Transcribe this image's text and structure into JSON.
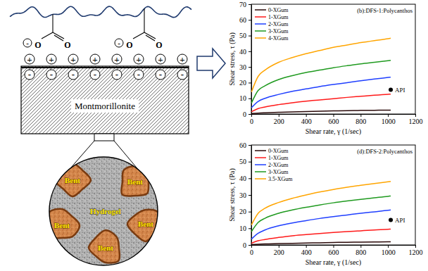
{
  "diagram": {
    "carboxylate_groups": [
      {
        "atoms": [
          "O",
          "O"
        ],
        "charge": "-"
      },
      {
        "atoms": [
          "O",
          "O"
        ],
        "charge": "-"
      }
    ],
    "cation_charges": [
      "+",
      "+",
      "+",
      "+",
      "+",
      "+",
      "+",
      "+"
    ],
    "surface_charges": [
      "-",
      "-",
      "-",
      "-",
      "-",
      "-",
      "-",
      "-"
    ],
    "plate_label": "Montmorillonite",
    "particle_labels": [
      "Bent",
      "Bent",
      "Bent",
      "Bent",
      "Bent"
    ],
    "matrix_label": "Hydrogel"
  },
  "chart_data": [
    {
      "type": "line",
      "title": "(b):DFS-1:Polycanthos",
      "x_label": "Shear rate, γ (1/sec)",
      "y_label": "Shear stress, τ (Pa)",
      "x": [
        1,
        50,
        100,
        200,
        300,
        400,
        500,
        600,
        700,
        800,
        900,
        1000,
        1020
      ],
      "series": [
        {
          "name": "0-XGum",
          "color": "#2b0a0a",
          "line_style": "solid",
          "values": [
            0.3,
            0.6,
            0.8,
            1.1,
            1.4,
            1.6,
            1.8,
            2.0,
            2.1,
            2.3,
            2.4,
            2.5,
            2.5
          ]
        },
        {
          "name": "1-XGum",
          "color": "#ff1a1a",
          "line_style": "solid",
          "values": [
            1.5,
            3.5,
            4.5,
            6,
            7.2,
            8.2,
            9,
            9.8,
            10.6,
            11.3,
            12,
            12.6,
            12.7
          ]
        },
        {
          "name": "2-XGum",
          "color": "#1f3fff",
          "line_style": "solid",
          "values": [
            4,
            8,
            10,
            12.5,
            14.5,
            16,
            17.5,
            18.8,
            20,
            21.2,
            22.3,
            23.3,
            23.5
          ]
        },
        {
          "name": "3-XGum",
          "color": "#1f9a1f",
          "line_style": "solid",
          "values": [
            7,
            15,
            18,
            22,
            24.5,
            26.5,
            28,
            29.5,
            30.8,
            32,
            33,
            34,
            34.2
          ]
        },
        {
          "name": "4-XGum",
          "color": "#ffa500",
          "line_style": "solid",
          "values": [
            14,
            24,
            28,
            33,
            36,
            38.5,
            40.5,
            42.5,
            44,
            45.5,
            46.8,
            48,
            48.3
          ]
        },
        {
          "name": "API",
          "type": "scatter",
          "marker": "circle",
          "color": "#000000",
          "values": [
            null,
            null,
            null,
            null,
            null,
            null,
            null,
            null,
            null,
            null,
            null,
            null,
            15.5
          ]
        }
      ],
      "xlim": [
        0,
        1200
      ],
      "xticks": [
        0,
        200,
        400,
        600,
        800,
        1000,
        1200
      ],
      "ylim": [
        0,
        70
      ],
      "yticks": [
        0,
        10,
        20,
        30,
        40,
        50,
        60,
        70
      ],
      "legend": "upper left",
      "grid": false
    },
    {
      "type": "line",
      "title": "(d):DFS-2:Polycanthos",
      "x_label": "Shear rate, γ (1/sec)",
      "y_label": "Shear stress, τ (Pa)",
      "x": [
        1,
        50,
        100,
        200,
        300,
        400,
        500,
        600,
        700,
        800,
        900,
        1000,
        1020
      ],
      "series": [
        {
          "name": "0-XGum",
          "color": "#2b0a0a",
          "line_style": "solid",
          "values": [
            0.2,
            0.4,
            0.6,
            0.8,
            1.0,
            1.2,
            1.3,
            1.5,
            1.6,
            1.7,
            1.8,
            1.9,
            1.9
          ]
        },
        {
          "name": "1-XGum",
          "color": "#ff1a1a",
          "line_style": "solid",
          "values": [
            1,
            2.5,
            3.3,
            4.5,
            5.5,
            6.2,
            6.9,
            7.5,
            8.0,
            8.5,
            9.0,
            9.4,
            9.5
          ]
        },
        {
          "name": "2-XGum",
          "color": "#1f3fff",
          "line_style": "solid",
          "values": [
            3.5,
            7,
            9,
            11.5,
            13.2,
            14.6,
            15.9,
            17,
            18,
            19,
            19.9,
            20.8,
            21
          ]
        },
        {
          "name": "3-XGum",
          "color": "#1f9a1f",
          "line_style": "solid",
          "values": [
            8,
            13.5,
            16,
            19,
            21,
            22.6,
            24,
            25.3,
            26.4,
            27.4,
            28.3,
            29.2,
            29.4
          ]
        },
        {
          "name": "3.5-XGum",
          "color": "#ffa500",
          "line_style": "solid",
          "values": [
            12,
            19,
            22,
            25.5,
            28,
            30,
            31.8,
            33.3,
            34.6,
            35.8,
            36.9,
            37.9,
            38.1
          ]
        },
        {
          "name": "API",
          "type": "scatter",
          "marker": "circle",
          "color": "#000000",
          "values": [
            null,
            null,
            null,
            null,
            null,
            null,
            null,
            null,
            null,
            null,
            null,
            null,
            15
          ]
        }
      ],
      "xlim": [
        0,
        1200
      ],
      "xticks": [
        0,
        200,
        400,
        600,
        800,
        1000,
        1200
      ],
      "ylim": [
        0,
        60
      ],
      "yticks": [
        0,
        10,
        20,
        30,
        40,
        50,
        60
      ],
      "legend": "upper left",
      "grid": false
    }
  ]
}
